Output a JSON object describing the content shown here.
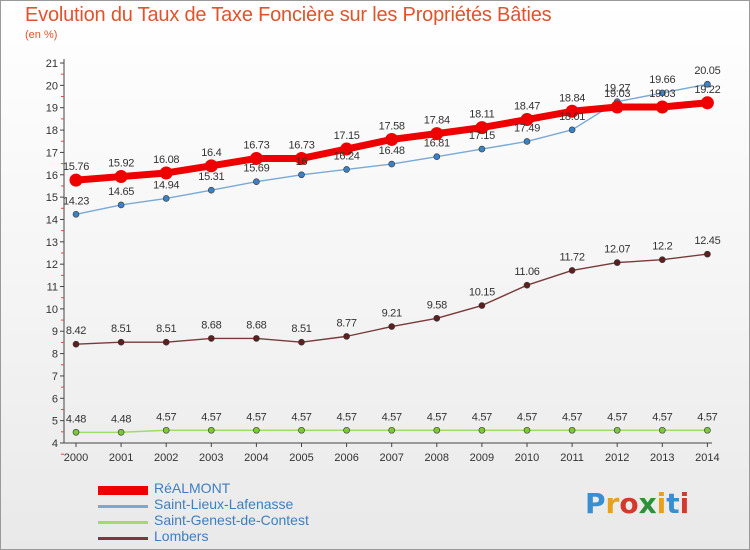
{
  "header": {
    "title": "Evolution du Taux de Taxe Foncière sur les Propriétés Bâties",
    "unit": "(en %)"
  },
  "logo": {
    "text": "Proxiti",
    "letter_colors": [
      "#3a8fd0",
      "#e9a11c",
      "#d6392b",
      "#2f8f3a",
      "#e9a11c",
      "#3a8fd0",
      "#d6392b"
    ]
  },
  "chart_data": {
    "type": "line",
    "title": "Evolution du Taux de Taxe Foncière sur les Propriétés Bâties",
    "ylabel": "(en %)",
    "xlabel": "",
    "x": [
      "2000",
      "2001",
      "2002",
      "2003",
      "2004",
      "2005",
      "2006",
      "2007",
      "2008",
      "2009",
      "2010",
      "2011",
      "2012",
      "2013",
      "2014"
    ],
    "ylim": [
      4,
      21
    ],
    "yticks": [
      4,
      5,
      6,
      7,
      8,
      9,
      10,
      11,
      12,
      13,
      14,
      15,
      16,
      17,
      18,
      19,
      20,
      21
    ],
    "grid": false,
    "legend_position": "bottom-left",
    "series": [
      {
        "name": "RéALMONT",
        "color": "#ee0000",
        "marker_color": "#ee0000",
        "emphasis": true,
        "values": [
          15.76,
          15.92,
          16.08,
          16.4,
          16.73,
          16.73,
          17.15,
          17.58,
          17.84,
          18.11,
          18.47,
          18.84,
          19.03,
          19.03,
          19.22
        ],
        "labels": [
          "15.76",
          "15.92",
          "16.08",
          "16.4",
          "16.73",
          "16.73",
          "17.15",
          "17.58",
          "17.84",
          "18.11",
          "18.47",
          "18.84",
          "19.03",
          "19.03",
          "19.22"
        ]
      },
      {
        "name": "Saint-Lieux-Lafenasse",
        "color": "#79a9d6",
        "marker_color": "#3a82c4",
        "emphasis": false,
        "values": [
          14.23,
          14.65,
          14.94,
          15.31,
          15.69,
          16.0,
          16.24,
          16.48,
          16.81,
          17.15,
          17.49,
          18.01,
          19.27,
          19.66,
          20.05
        ],
        "labels": [
          "14.23",
          "14.65",
          "14.94",
          "15.31",
          "15.69",
          "16",
          "16.24",
          "16.48",
          "16.81",
          "17.15",
          "17.49",
          "18.01",
          "19.27",
          "19.66",
          "20.05"
        ]
      },
      {
        "name": "Saint-Genest-de-Contest",
        "color": "#9fdc6a",
        "marker_color": "#7cc83a",
        "emphasis": false,
        "values": [
          4.48,
          4.48,
          4.57,
          4.57,
          4.57,
          4.57,
          4.57,
          4.57,
          4.57,
          4.57,
          4.57,
          4.57,
          4.57,
          4.57,
          4.57
        ],
        "labels": [
          "4.48",
          "4.48",
          "4.57",
          "4.57",
          "4.57",
          "4.57",
          "4.57",
          "4.57",
          "4.57",
          "4.57",
          "4.57",
          "4.57",
          "4.57",
          "4.57",
          "4.57"
        ]
      },
      {
        "name": "Lombers",
        "color": "#7a3a3a",
        "marker_color": "#5e1f1f",
        "emphasis": false,
        "values": [
          8.42,
          8.51,
          8.51,
          8.68,
          8.68,
          8.51,
          8.77,
          9.21,
          9.58,
          10.15,
          11.06,
          11.72,
          12.07,
          12.2,
          12.45
        ],
        "labels": [
          "8.42",
          "8.51",
          "8.51",
          "8.68",
          "8.68",
          "8.51",
          "8.77",
          "9.21",
          "9.58",
          "10.15",
          "11.06",
          "11.72",
          "12.07",
          "12.2",
          "12.45"
        ]
      }
    ]
  }
}
